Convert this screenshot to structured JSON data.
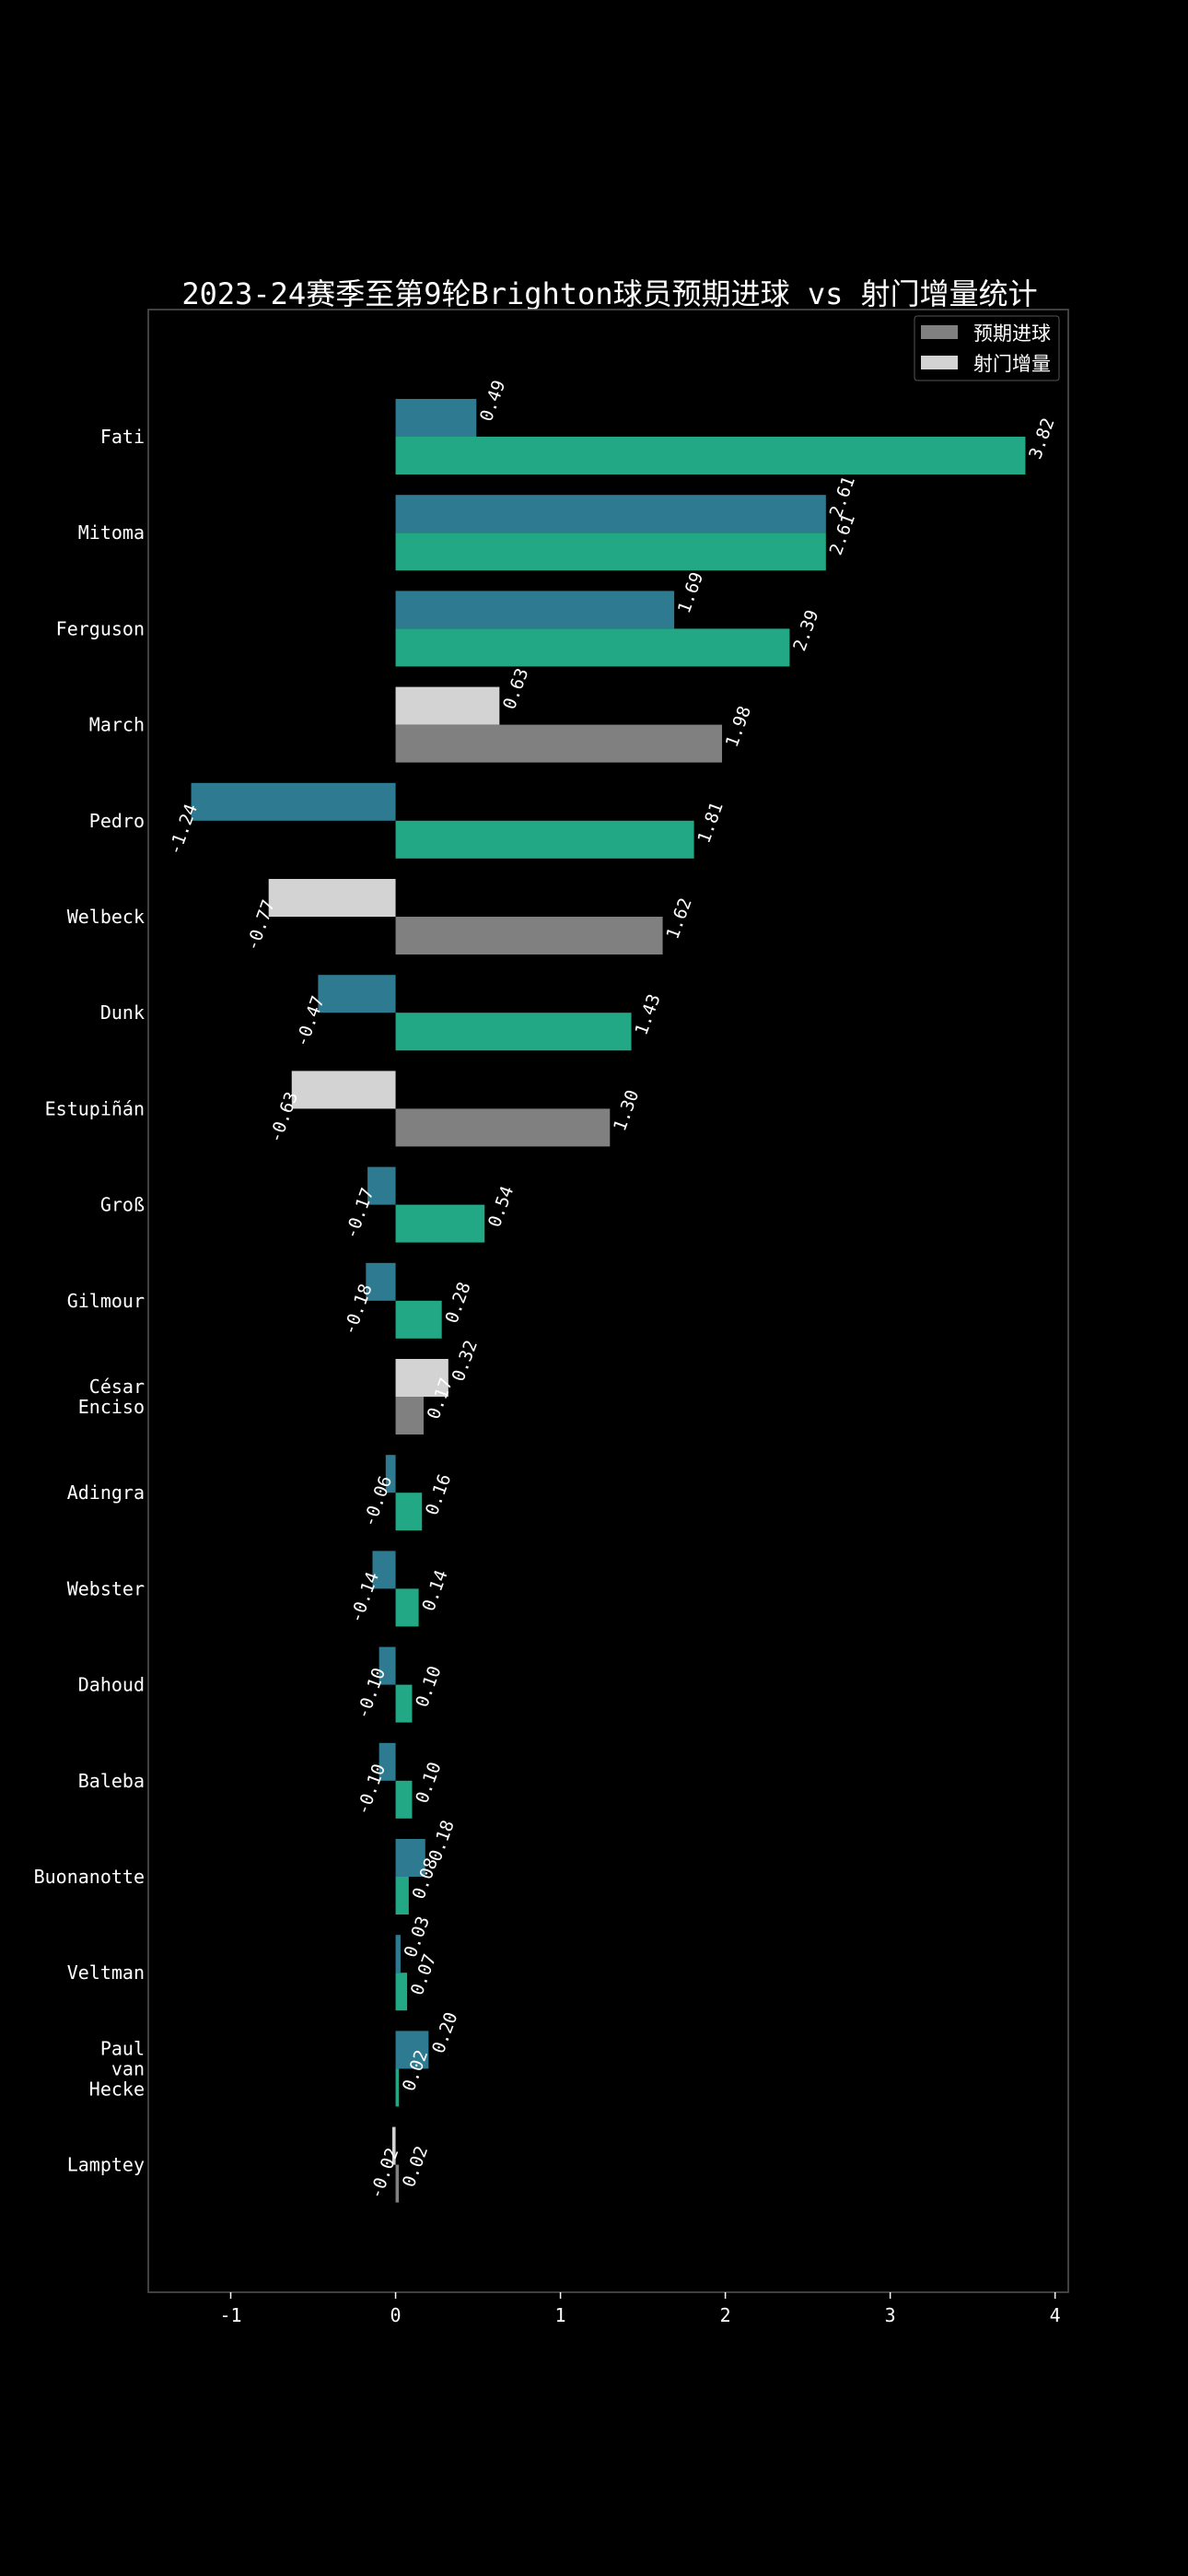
{
  "chart_data": {
    "type": "bar",
    "orientation": "horizontal",
    "title": "2023-24赛季至第9轮Brighton球员预期进球 vs 射门增量统计",
    "xlabel": "",
    "ylabel": "",
    "xlim": [
      -1.5,
      4.08
    ],
    "xticks": [
      -1,
      0,
      1,
      2,
      3,
      4
    ],
    "legend": {
      "placement": "top-right",
      "entries": [
        {
          "name": "预期进球",
          "color": "#808080"
        },
        {
          "name": "射门增量",
          "color": "#d3d3d3"
        }
      ]
    },
    "colors": {
      "top_bar_highlight": "#2e7b91",
      "bottom_bar_highlight": "#22a884",
      "top_bar_default": "#d3d3d3",
      "bottom_bar_default": "#808080"
    },
    "players": [
      {
        "name": [
          "Fati"
        ],
        "shot_delta": 0.49,
        "xg": 3.82,
        "shot_label": "0.49",
        "xg_label": "3.82",
        "highlight": true
      },
      {
        "name": [
          "Mitoma"
        ],
        "shot_delta": 2.61,
        "xg": 2.61,
        "shot_label": "2.61",
        "xg_label": "2.61",
        "highlight": true
      },
      {
        "name": [
          "Ferguson"
        ],
        "shot_delta": 1.69,
        "xg": 2.39,
        "shot_label": "1.69",
        "xg_label": "2.39",
        "highlight": true
      },
      {
        "name": [
          "March"
        ],
        "shot_delta": 0.63,
        "xg": 1.98,
        "shot_label": "0.63",
        "xg_label": "1.98",
        "highlight": false
      },
      {
        "name": [
          "Pedro"
        ],
        "shot_delta": -1.24,
        "xg": 1.81,
        "shot_label": "-1.24",
        "xg_label": "1.81",
        "highlight": true
      },
      {
        "name": [
          "Welbeck"
        ],
        "shot_delta": -0.77,
        "xg": 1.62,
        "shot_label": "-0.77",
        "xg_label": "1.62",
        "highlight": false
      },
      {
        "name": [
          "Dunk"
        ],
        "shot_delta": -0.47,
        "xg": 1.43,
        "shot_label": "-0.47",
        "xg_label": "1.43",
        "highlight": true
      },
      {
        "name": [
          "Estupiñán"
        ],
        "shot_delta": -0.63,
        "xg": 1.3,
        "shot_label": "-0.63",
        "xg_label": "1.30",
        "highlight": false
      },
      {
        "name": [
          "Groß"
        ],
        "shot_delta": -0.17,
        "xg": 0.54,
        "shot_label": "-0.17",
        "xg_label": "0.54",
        "highlight": true
      },
      {
        "name": [
          "Gilmour"
        ],
        "shot_delta": -0.18,
        "xg": 0.28,
        "shot_label": "-0.18",
        "xg_label": "0.28",
        "highlight": true
      },
      {
        "name": [
          "César",
          "Enciso"
        ],
        "shot_delta": 0.32,
        "xg": 0.17,
        "shot_label": "0.32",
        "xg_label": "0.17",
        "highlight": false
      },
      {
        "name": [
          "Adingra"
        ],
        "shot_delta": -0.06,
        "xg": 0.16,
        "shot_label": "-0.06",
        "xg_label": "0.16",
        "highlight": true
      },
      {
        "name": [
          "Webster"
        ],
        "shot_delta": -0.14,
        "xg": 0.14,
        "shot_label": "-0.14",
        "xg_label": "0.14",
        "highlight": true
      },
      {
        "name": [
          "Dahoud"
        ],
        "shot_delta": -0.1,
        "xg": 0.1,
        "shot_label": "-0.10",
        "xg_label": "0.10",
        "highlight": true
      },
      {
        "name": [
          "Baleba"
        ],
        "shot_delta": -0.1,
        "xg": 0.1,
        "shot_label": "-0.10",
        "xg_label": "0.10",
        "highlight": true
      },
      {
        "name": [
          "Buonanotte"
        ],
        "shot_delta": 0.18,
        "xg": 0.08,
        "shot_label": "0.18",
        "xg_label": "0.08",
        "highlight": true
      },
      {
        "name": [
          "Veltman"
        ],
        "shot_delta": 0.03,
        "xg": 0.07,
        "shot_label": "0.03",
        "xg_label": "0.07",
        "highlight": true
      },
      {
        "name": [
          "Paul",
          "van",
          "Hecke"
        ],
        "shot_delta": 0.2,
        "xg": 0.02,
        "shot_label": "0.20",
        "xg_label": "0.02",
        "highlight": true
      },
      {
        "name": [
          "Lamptey"
        ],
        "shot_delta": -0.02,
        "xg": 0.02,
        "shot_label": "-0.02",
        "xg_label": "0.02",
        "highlight": false
      }
    ]
  }
}
